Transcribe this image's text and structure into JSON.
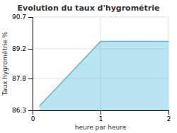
{
  "chart_data": {
    "type": "area",
    "title": "Evolution du taux d'hygrométrie",
    "xlabel": "heure par heure",
    "ylabel": "Taux hygrométrie %",
    "x": [
      0.1,
      1.0,
      2.0
    ],
    "values": [
      86.5,
      89.55,
      89.55
    ],
    "color": "#55bbdd",
    "xlim": [
      0,
      2
    ],
    "ylim": [
      86.3,
      90.7
    ],
    "xticks": [
      0,
      1,
      2
    ],
    "yticks": [
      86.3,
      87.8,
      89.2,
      90.7
    ],
    "grid": true
  }
}
